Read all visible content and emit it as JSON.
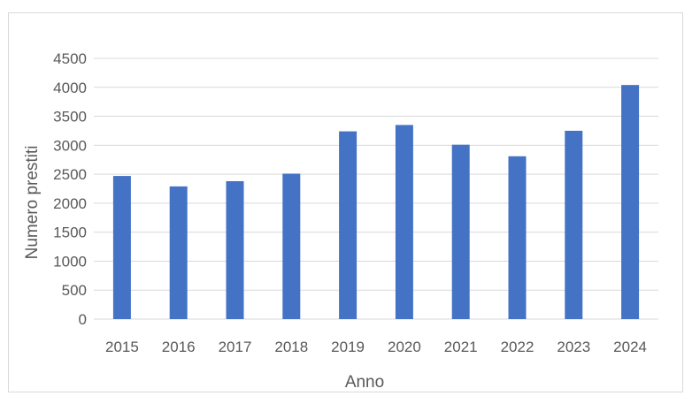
{
  "chart_data": {
    "type": "bar",
    "title": "",
    "xlabel": "Anno",
    "ylabel": "Numero prestiti",
    "categories": [
      "2015",
      "2016",
      "2017",
      "2018",
      "2019",
      "2020",
      "2021",
      "2022",
      "2023",
      "2024"
    ],
    "series": [
      {
        "values": [
          2470,
          2290,
          2380,
          2510,
          3240,
          3350,
          3010,
          2810,
          3250,
          4040
        ],
        "color": "#4472c4"
      }
    ],
    "ylim": [
      0,
      4500
    ],
    "yticks": [
      "0",
      "500",
      "1000",
      "1500",
      "2000",
      "2500",
      "3000",
      "3500",
      "4000",
      "4500"
    ],
    "grid": true,
    "legend": "none"
  }
}
